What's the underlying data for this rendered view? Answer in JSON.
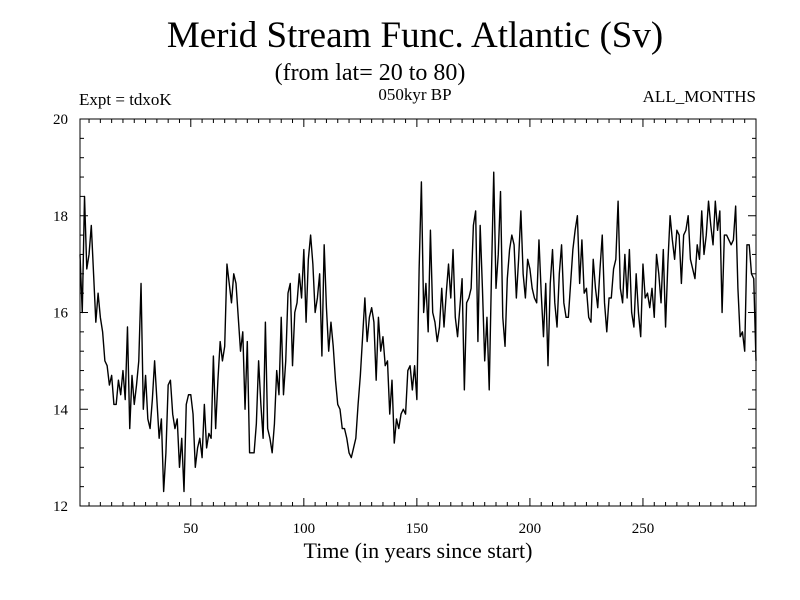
{
  "header": {
    "title": "Merid Stream Func. Atlantic (Sv)",
    "subtitle": "(from lat= 20 to 80)",
    "expt": "Expt = tdxoK",
    "center_label": "050kyr BP",
    "right_label": "ALL_MONTHS"
  },
  "chart_data": {
    "type": "line",
    "title": "Merid Stream Func. Atlantic (Sv)",
    "subtitle": "(from lat= 20 to 80)",
    "xlabel": "Time (in years since start)",
    "ylabel": "",
    "xlim": [
      1,
      300
    ],
    "ylim": [
      12,
      20
    ],
    "xticks": [
      50,
      100,
      150,
      200,
      250
    ],
    "yticks": [
      12,
      14,
      16,
      18,
      20
    ],
    "grid": false,
    "legend": "none",
    "line_color": "#000000",
    "series": [
      {
        "x": [
          1,
          2,
          3,
          4,
          5,
          6,
          7,
          8,
          9,
          10,
          11,
          12,
          13,
          14,
          15,
          16,
          17,
          18,
          19,
          20,
          21,
          22,
          23,
          24,
          25,
          26,
          27,
          28,
          29,
          30,
          31,
          32,
          33,
          34,
          35,
          36,
          37,
          38,
          39,
          40,
          41,
          42,
          43,
          44,
          45,
          46,
          47,
          48,
          49,
          50,
          51,
          52,
          53,
          54,
          55,
          56,
          57,
          58,
          59,
          60,
          61,
          62,
          63,
          64,
          65,
          66,
          67,
          68,
          69,
          70,
          71,
          72,
          73,
          74,
          75,
          76,
          77,
          78,
          79,
          80,
          81,
          82,
          83,
          84,
          85,
          86,
          87,
          88,
          89,
          90,
          91,
          92,
          93,
          94,
          95,
          96,
          97,
          98,
          99,
          100,
          101,
          102,
          103,
          104,
          105,
          106,
          107,
          108,
          109,
          110,
          111,
          112,
          113,
          114,
          115,
          116,
          117,
          118,
          119,
          120,
          121,
          122,
          123,
          124,
          125,
          126,
          127,
          128,
          129,
          130,
          131,
          132,
          133,
          134,
          135,
          136,
          137,
          138,
          139,
          140,
          141,
          142,
          143,
          144,
          145,
          146,
          147,
          148,
          149,
          150,
          151,
          152,
          153,
          154,
          155,
          156,
          157,
          158,
          159,
          160,
          161,
          162,
          163,
          164,
          165,
          166,
          167,
          168,
          169,
          170,
          171,
          172,
          173,
          174,
          175,
          176,
          177,
          178,
          179,
          180,
          181,
          182,
          183,
          184,
          185,
          186,
          187,
          188,
          189,
          190,
          191,
          192,
          193,
          194,
          195,
          196,
          197,
          198,
          199,
          200,
          201,
          202,
          203,
          204,
          205,
          206,
          207,
          208,
          209,
          210,
          211,
          212,
          213,
          214,
          215,
          216,
          217,
          218,
          219,
          220,
          221,
          222,
          223,
          224,
          225,
          226,
          227,
          228,
          229,
          230,
          231,
          232,
          233,
          234,
          235,
          236,
          237,
          238,
          239,
          240,
          241,
          242,
          243,
          244,
          245,
          246,
          247,
          248,
          249,
          250,
          251,
          252,
          253,
          254,
          255,
          256,
          257,
          258,
          259,
          260,
          261,
          262,
          263,
          264,
          265,
          266,
          267,
          268,
          269,
          270,
          271,
          272,
          273,
          274,
          275,
          276,
          277,
          278,
          279,
          280,
          281,
          282,
          283,
          284,
          285,
          286,
          287,
          288,
          289,
          290,
          291,
          292,
          293,
          294,
          295,
          296,
          297,
          298,
          299,
          300
        ],
        "y": [
          17.2,
          16.0,
          18.4,
          16.9,
          17.2,
          17.8,
          16.8,
          15.8,
          16.4,
          15.9,
          15.6,
          15.0,
          14.9,
          14.5,
          14.7,
          14.1,
          14.1,
          14.6,
          14.3,
          14.8,
          14.2,
          15.7,
          13.6,
          14.7,
          14.1,
          14.5,
          15.0,
          16.6,
          14.0,
          14.7,
          13.8,
          13.6,
          14.2,
          15.0,
          14.2,
          13.4,
          13.8,
          12.3,
          13.1,
          14.5,
          14.6,
          13.9,
          13.6,
          13.8,
          12.8,
          13.4,
          12.3,
          14.1,
          14.3,
          14.3,
          13.9,
          12.8,
          13.2,
          13.4,
          13.0,
          14.1,
          13.2,
          13.5,
          13.4,
          15.1,
          13.6,
          14.6,
          15.4,
          15.0,
          15.3,
          17.0,
          16.6,
          16.2,
          16.8,
          16.6,
          15.9,
          15.2,
          15.6,
          14.0,
          15.4,
          13.1,
          13.1,
          13.1,
          13.7,
          15.0,
          14.1,
          13.4,
          15.8,
          13.6,
          13.4,
          13.1,
          13.7,
          14.8,
          14.3,
          15.9,
          14.3,
          15.0,
          16.4,
          16.6,
          14.9,
          16.0,
          16.2,
          16.8,
          16.3,
          17.3,
          15.8,
          17.1,
          17.6,
          17.0,
          16.0,
          16.3,
          16.8,
          15.1,
          17.4,
          16.1,
          15.2,
          15.8,
          15.3,
          14.6,
          14.1,
          14.0,
          13.6,
          13.6,
          13.4,
          13.1,
          13.0,
          13.2,
          13.4,
          14.1,
          14.7,
          15.5,
          16.3,
          15.4,
          15.9,
          16.1,
          15.8,
          14.6,
          15.9,
          15.2,
          15.5,
          14.9,
          15.0,
          13.9,
          14.6,
          13.3,
          13.8,
          13.6,
          13.9,
          14.0,
          13.9,
          14.8,
          14.9,
          14.4,
          14.9,
          14.2,
          16.9,
          18.7,
          16.0,
          16.6,
          15.6,
          17.7,
          16.0,
          15.8,
          15.4,
          15.7,
          16.5,
          15.7,
          16.4,
          17.0,
          16.3,
          17.3,
          15.9,
          15.5,
          16.1,
          16.7,
          14.4,
          16.2,
          16.3,
          16.5,
          17.8,
          18.1,
          15.4,
          17.8,
          16.5,
          15.0,
          15.9,
          14.4,
          16.8,
          18.9,
          16.5,
          17.2,
          18.5,
          15.9,
          15.3,
          16.7,
          17.3,
          17.6,
          17.4,
          16.3,
          17.1,
          18.1,
          16.8,
          16.3,
          17.1,
          16.9,
          16.5,
          16.3,
          16.2,
          17.5,
          16.4,
          15.5,
          16.6,
          14.9,
          16.6,
          17.3,
          16.2,
          15.7,
          16.8,
          17.4,
          16.2,
          15.9,
          15.9,
          16.6,
          17.3,
          17.7,
          18.0,
          16.6,
          17.5,
          16.4,
          16.5,
          15.9,
          15.8,
          17.1,
          16.5,
          16.1,
          16.9,
          17.6,
          16.2,
          15.6,
          16.3,
          16.3,
          16.9,
          17.1,
          18.3,
          16.5,
          16.2,
          17.2,
          16.3,
          17.3,
          16.0,
          15.7,
          16.8,
          16.0,
          15.5,
          17.0,
          16.3,
          16.4,
          16.1,
          16.5,
          15.9,
          17.2,
          16.8,
          16.2,
          17.3,
          15.7,
          17.0,
          18.0,
          17.5,
          17.1,
          17.7,
          17.6,
          16.6,
          17.6,
          17.7,
          18.0,
          17.1,
          16.9,
          16.7,
          17.4,
          17.1,
          18.1,
          17.2,
          17.6,
          18.3,
          17.8,
          17.4,
          18.3,
          17.7,
          18.1,
          16.0,
          17.6,
          17.6,
          17.5,
          17.4,
          17.5,
          18.2,
          16.5,
          15.5,
          15.6,
          15.2,
          17.4,
          17.4,
          16.8,
          16.7,
          15.0
        ]
      }
    ]
  }
}
